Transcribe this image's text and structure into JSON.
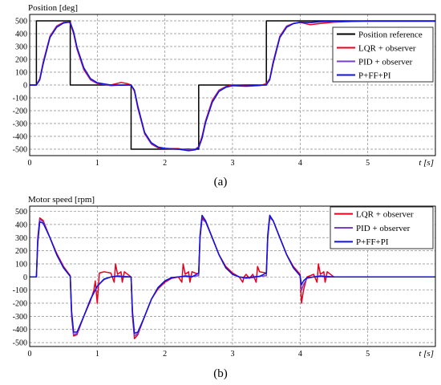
{
  "chart_data": [
    {
      "type": "line",
      "panel_label": "(a)",
      "title": "Position [deg]",
      "xlabel": "t [s]",
      "ylabel": "",
      "xlim": [
        0,
        6
      ],
      "ylim": [
        -550,
        550
      ],
      "xticks": [
        0,
        1,
        2,
        3,
        4,
        5
      ],
      "yticks": [
        500,
        400,
        300,
        200,
        100,
        0,
        -100,
        -200,
        -300,
        -400,
        -500
      ],
      "grid": true,
      "legend_position": "right",
      "series": [
        {
          "name": "Position reference",
          "color": "#000000",
          "x": [
            0,
            0.1,
            0.1,
            0.6,
            0.6,
            1.5,
            1.5,
            2.5,
            2.5,
            3.5,
            3.5,
            6.0
          ],
          "y": [
            0,
            0,
            500,
            500,
            0,
            0,
            -500,
            -500,
            0,
            0,
            500,
            500
          ]
        },
        {
          "name": "LQR + observer",
          "color": "#e8001c",
          "x": [
            0,
            0.1,
            0.15,
            0.2,
            0.3,
            0.4,
            0.5,
            0.58,
            0.6,
            0.65,
            0.7,
            0.8,
            0.9,
            1.0,
            1.2,
            1.35,
            1.45,
            1.5,
            1.55,
            1.6,
            1.7,
            1.8,
            1.9,
            2.0,
            2.2,
            2.35,
            2.45,
            2.5,
            2.55,
            2.6,
            2.7,
            2.8,
            2.9,
            3.0,
            3.2,
            3.4,
            3.5,
            3.55,
            3.6,
            3.7,
            3.8,
            3.9,
            4.0,
            4.15,
            4.3,
            4.5,
            5.0,
            6.0
          ],
          "y": [
            0,
            0,
            50,
            180,
            380,
            460,
            488,
            490,
            480,
            400,
            280,
            120,
            40,
            12,
            0,
            20,
            10,
            0,
            -50,
            -180,
            -380,
            -460,
            -490,
            -495,
            -495,
            -510,
            -500,
            -480,
            -400,
            -280,
            -120,
            -40,
            -12,
            0,
            -5,
            -5,
            10,
            50,
            180,
            380,
            460,
            480,
            488,
            470,
            480,
            490,
            500,
            500
          ]
        },
        {
          "name": "PID + observer",
          "color": "#7a3ec8",
          "x": [
            0,
            0.1,
            0.15,
            0.2,
            0.3,
            0.4,
            0.5,
            0.58,
            0.6,
            0.65,
            0.7,
            0.8,
            0.9,
            1.0,
            1.2,
            1.35,
            1.45,
            1.5,
            1.55,
            1.6,
            1.7,
            1.8,
            1.9,
            2.0,
            2.2,
            2.35,
            2.45,
            2.5,
            2.55,
            2.6,
            2.7,
            2.8,
            2.9,
            3.0,
            3.2,
            3.4,
            3.5,
            3.55,
            3.6,
            3.7,
            3.8,
            3.9,
            4.0,
            4.15,
            4.3,
            4.5,
            5.0,
            6.0
          ],
          "y": [
            0,
            0,
            45,
            170,
            375,
            455,
            485,
            490,
            485,
            410,
            290,
            130,
            45,
            15,
            -5,
            0,
            0,
            0,
            -45,
            -170,
            -375,
            -455,
            -485,
            -495,
            -500,
            -505,
            -498,
            -485,
            -410,
            -290,
            -130,
            -45,
            -15,
            -5,
            -10,
            -5,
            5,
            45,
            170,
            375,
            455,
            480,
            490,
            485,
            492,
            495,
            498,
            498
          ]
        },
        {
          "name": "P+FF+PI",
          "color": "#1010e0",
          "x": [
            0,
            0.1,
            0.15,
            0.2,
            0.3,
            0.4,
            0.5,
            0.58,
            0.6,
            0.65,
            0.7,
            0.8,
            0.9,
            1.0,
            1.2,
            1.35,
            1.45,
            1.5,
            1.55,
            1.6,
            1.7,
            1.8,
            1.9,
            2.0,
            2.2,
            2.35,
            2.45,
            2.5,
            2.55,
            2.6,
            2.7,
            2.8,
            2.9,
            3.0,
            3.2,
            3.4,
            3.5,
            3.55,
            3.6,
            3.7,
            3.8,
            3.9,
            4.0,
            4.15,
            4.3,
            4.5,
            5.0,
            6.0
          ],
          "y": [
            0,
            0,
            40,
            165,
            370,
            450,
            483,
            490,
            488,
            415,
            295,
            135,
            50,
            18,
            0,
            -2,
            0,
            0,
            -40,
            -165,
            -370,
            -450,
            -483,
            -493,
            -500,
            -512,
            -505,
            -488,
            -415,
            -295,
            -135,
            -50,
            -18,
            -5,
            -8,
            -2,
            2,
            40,
            165,
            370,
            450,
            478,
            488,
            488,
            495,
            497,
            497,
            497
          ]
        }
      ]
    },
    {
      "type": "line",
      "panel_label": "(b)",
      "title": "Motor speed [rpm]",
      "xlabel": "t [s]",
      "ylabel": "",
      "xlim": [
        0,
        6
      ],
      "ylim": [
        -530,
        540
      ],
      "xticks": [
        0,
        1,
        2,
        3,
        4,
        5
      ],
      "yticks": [
        500,
        400,
        300,
        200,
        100,
        0,
        -100,
        -200,
        -300,
        -400,
        -500
      ],
      "grid": true,
      "legend_position": "top-right",
      "series": [
        {
          "name": "LQR + observer",
          "color": "#e8001c",
          "x": [
            0,
            0.1,
            0.12,
            0.15,
            0.2,
            0.3,
            0.4,
            0.5,
            0.6,
            0.62,
            0.65,
            0.7,
            0.8,
            0.9,
            0.95,
            0.97,
            1.0,
            1.03,
            1.1,
            1.2,
            1.25,
            1.27,
            1.3,
            1.35,
            1.37,
            1.4,
            1.5,
            1.52,
            1.55,
            1.6,
            1.7,
            1.8,
            1.9,
            2.0,
            2.1,
            2.2,
            2.25,
            2.27,
            2.3,
            2.35,
            2.37,
            2.4,
            2.5,
            2.52,
            2.55,
            2.6,
            2.7,
            2.8,
            2.9,
            3.0,
            3.1,
            3.15,
            3.17,
            3.2,
            3.25,
            3.3,
            3.35,
            3.37,
            3.4,
            3.5,
            3.52,
            3.55,
            3.6,
            3.7,
            3.8,
            3.9,
            4.0,
            4.02,
            4.05,
            4.1,
            4.2,
            4.25,
            4.27,
            4.3,
            4.35,
            4.37,
            4.4,
            4.5,
            4.6,
            6.0
          ],
          "y": [
            0,
            0,
            300,
            450,
            430,
            300,
            180,
            80,
            10,
            -300,
            -450,
            -440,
            -300,
            -180,
            -100,
            -30,
            -200,
            30,
            40,
            30,
            -40,
            100,
            20,
            40,
            -40,
            40,
            0,
            -300,
            -470,
            -440,
            -300,
            -170,
            -90,
            -40,
            -10,
            0,
            -40,
            100,
            20,
            40,
            -40,
            40,
            20,
            300,
            450,
            430,
            300,
            170,
            80,
            30,
            0,
            -40,
            0,
            20,
            -10,
            20,
            -40,
            80,
            40,
            30,
            300,
            460,
            430,
            300,
            170,
            80,
            20,
            -200,
            -100,
            0,
            20,
            -40,
            100,
            20,
            40,
            -40,
            40,
            0,
            0,
            0
          ]
        },
        {
          "name": "PID + observer",
          "color": "#7a3ec8",
          "x": [
            0,
            0.1,
            0.12,
            0.15,
            0.2,
            0.3,
            0.4,
            0.5,
            0.6,
            0.62,
            0.65,
            0.7,
            0.8,
            0.9,
            1.0,
            1.1,
            1.2,
            1.3,
            1.4,
            1.5,
            1.52,
            1.55,
            1.6,
            1.7,
            1.8,
            1.9,
            2.0,
            2.1,
            2.2,
            2.3,
            2.4,
            2.5,
            2.52,
            2.55,
            2.6,
            2.7,
            2.8,
            2.9,
            3.0,
            3.1,
            3.2,
            3.3,
            3.4,
            3.5,
            3.52,
            3.55,
            3.6,
            3.7,
            3.8,
            3.9,
            4.0,
            4.02,
            4.05,
            4.1,
            4.2,
            4.3,
            4.4,
            4.5,
            6.0
          ],
          "y": [
            0,
            0,
            280,
            440,
            420,
            300,
            170,
            70,
            5,
            -280,
            -440,
            -430,
            -300,
            -170,
            -70,
            -20,
            0,
            10,
            5,
            0,
            -280,
            -450,
            -430,
            -300,
            -170,
            -80,
            -30,
            -5,
            0,
            10,
            5,
            10,
            300,
            440,
            420,
            300,
            170,
            70,
            20,
            0,
            -10,
            -5,
            5,
            10,
            290,
            450,
            430,
            300,
            170,
            70,
            10,
            -100,
            -60,
            -10,
            0,
            10,
            5,
            0,
            0
          ]
        },
        {
          "name": "P+FF+PI",
          "color": "#1010e0",
          "x": [
            0,
            0.1,
            0.12,
            0.15,
            0.2,
            0.3,
            0.4,
            0.5,
            0.6,
            0.62,
            0.65,
            0.7,
            0.8,
            0.9,
            1.0,
            1.1,
            1.2,
            1.3,
            1.4,
            1.5,
            1.52,
            1.55,
            1.6,
            1.7,
            1.8,
            1.9,
            2.0,
            2.1,
            2.2,
            2.3,
            2.4,
            2.5,
            2.52,
            2.55,
            2.6,
            2.7,
            2.8,
            2.9,
            3.0,
            3.1,
            3.2,
            3.3,
            3.4,
            3.5,
            3.52,
            3.55,
            3.6,
            3.7,
            3.8,
            3.9,
            4.0,
            4.02,
            4.05,
            4.1,
            4.2,
            4.3,
            4.4,
            4.5,
            6.0
          ],
          "y": [
            0,
            0,
            260,
            420,
            410,
            300,
            170,
            70,
            5,
            -260,
            -420,
            -420,
            -300,
            -170,
            -70,
            -15,
            0,
            5,
            0,
            0,
            -260,
            -430,
            -420,
            -300,
            -170,
            -80,
            -30,
            -5,
            0,
            5,
            0,
            30,
            320,
            470,
            430,
            300,
            170,
            70,
            20,
            0,
            -5,
            0,
            5,
            30,
            320,
            470,
            430,
            300,
            170,
            70,
            10,
            -60,
            -30,
            -5,
            0,
            5,
            0,
            0,
            0
          ]
        }
      ]
    }
  ]
}
